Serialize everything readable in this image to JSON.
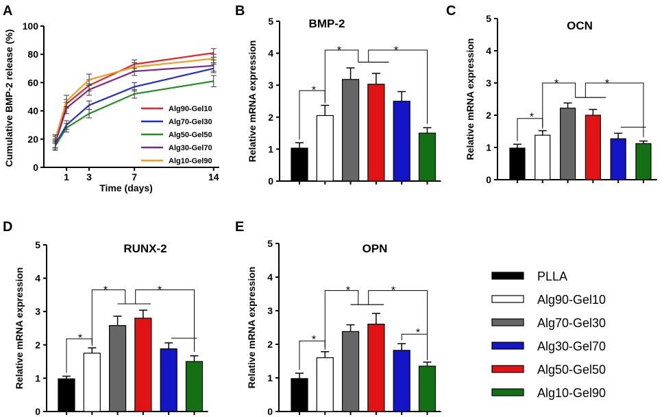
{
  "figure_labels": [
    "A",
    "B",
    "C",
    "D",
    "E"
  ],
  "chart_data": [
    {
      "id": "A",
      "type": "line",
      "title": "",
      "xlabel": "Time (days)",
      "ylabel": "Cumulative BMP-2 release (%)",
      "xlim": [
        -1,
        14.5
      ],
      "ylim": [
        0,
        100
      ],
      "xticks": [
        1,
        3,
        7,
        14
      ],
      "yticks": [
        0,
        20,
        40,
        60,
        80,
        100
      ],
      "x": [
        0,
        1,
        3,
        7,
        14
      ],
      "series": [
        {
          "name": "Alg90-Gel10",
          "color": "#e8262a",
          "values": [
            18,
            45,
            58,
            73,
            81
          ],
          "errors": [
            4,
            3,
            4,
            3,
            3
          ]
        },
        {
          "name": "Alg70-Gel30",
          "color": "#1f2bd0",
          "values": [
            16,
            30,
            44,
            57,
            70
          ],
          "errors": [
            3,
            3,
            3,
            3,
            3
          ]
        },
        {
          "name": "Alg50-Gel50",
          "color": "#228b22",
          "values": [
            15,
            28,
            38,
            52,
            61
          ],
          "errors": [
            3,
            3,
            3,
            3,
            4
          ]
        },
        {
          "name": "Alg30-Gel70",
          "color": "#7b2589",
          "values": [
            17,
            42,
            55,
            68,
            72
          ],
          "errors": [
            3,
            4,
            4,
            3,
            4
          ]
        },
        {
          "name": "Alg10-Gel90",
          "color": "#f59a23",
          "values": [
            20,
            47,
            62,
            71,
            77
          ],
          "errors": [
            3,
            4,
            4,
            3,
            3
          ]
        }
      ]
    },
    {
      "id": "B",
      "type": "bar",
      "title": "BMP-2",
      "ylabel": "Relative mRNA expression",
      "ylim": [
        0,
        5
      ],
      "yticks": [
        0,
        1,
        2,
        3,
        4,
        5
      ],
      "categories": [
        "PLLA",
        "Alg90-Gel10",
        "Alg70-Gel30",
        "Alg50-Gel50",
        "Alg30-Gel70",
        "Alg10-Gel90"
      ],
      "values": [
        1.03,
        2.05,
        3.18,
        3.03,
        2.5,
        1.5
      ],
      "errors": [
        0.17,
        0.32,
        0.36,
        0.34,
        0.3,
        0.17
      ],
      "sig_marks": [
        "*",
        "*",
        "*"
      ]
    },
    {
      "id": "C",
      "type": "bar",
      "title": "OCN",
      "ylabel": "Relative mRNA expression",
      "ylim": [
        0,
        5
      ],
      "yticks": [
        0,
        1,
        2,
        3,
        4,
        5
      ],
      "categories": [
        "PLLA",
        "Alg90-Gel10",
        "Alg70-Gel30",
        "Alg50-Gel50",
        "Alg30-Gel70",
        "Alg10-Gel90"
      ],
      "values": [
        0.98,
        1.38,
        2.22,
        2.0,
        1.27,
        1.12
      ],
      "errors": [
        0.12,
        0.14,
        0.16,
        0.18,
        0.17,
        0.08
      ],
      "sig_marks": [
        "*",
        "*",
        "*"
      ]
    },
    {
      "id": "D",
      "type": "bar",
      "title": "RUNX-2",
      "ylabel": "Relative mRNA expression",
      "ylim": [
        0,
        5
      ],
      "yticks": [
        0,
        1,
        2,
        3,
        4,
        5
      ],
      "categories": [
        "PLLA",
        "Alg90-Gel10",
        "Alg70-Gel30",
        "Alg50-Gel50",
        "Alg30-Gel70",
        "Alg10-Gel90"
      ],
      "values": [
        0.98,
        1.75,
        2.58,
        2.8,
        1.88,
        1.5
      ],
      "errors": [
        0.08,
        0.16,
        0.28,
        0.24,
        0.18,
        0.17
      ],
      "sig_marks": [
        "*",
        "*",
        "*"
      ]
    },
    {
      "id": "E",
      "type": "bar",
      "title": "OPN",
      "ylabel": "Relative mRNA expression",
      "ylim": [
        0,
        5
      ],
      "yticks": [
        0,
        1,
        2,
        3,
        4,
        5
      ],
      "categories": [
        "PLLA",
        "Alg90-Gel10",
        "Alg70-Gel30",
        "Alg50-Gel50",
        "Alg30-Gel70",
        "Alg10-Gel90"
      ],
      "values": [
        0.98,
        1.6,
        2.38,
        2.6,
        1.82,
        1.35
      ],
      "errors": [
        0.16,
        0.18,
        0.2,
        0.32,
        0.2,
        0.12
      ],
      "sig_marks": [
        "*",
        "*",
        "*",
        "*"
      ]
    }
  ],
  "bar_legend": {
    "items": [
      {
        "label": "PLLA",
        "fill": "#000000"
      },
      {
        "label": "Alg90-Gel10",
        "fill": "#ffffff"
      },
      {
        "label": "Alg70-Gel30",
        "fill": "#666666"
      },
      {
        "label": "Alg30-Gel70",
        "fill": "#1515c8"
      },
      {
        "label": "Alg50-Gel50",
        "fill": "#e01414"
      },
      {
        "label": "Alg10-Gel90",
        "fill": "#137013"
      }
    ]
  },
  "bar_fills": [
    "#000000",
    "#ffffff",
    "#666666",
    "#e01414",
    "#1515c8",
    "#137013"
  ]
}
